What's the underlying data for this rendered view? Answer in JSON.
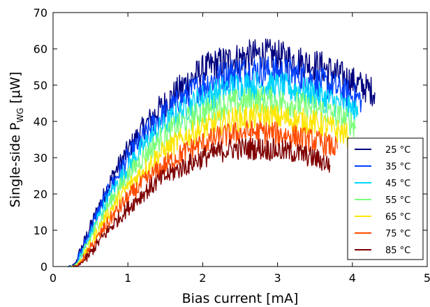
{
  "chart_data": {
    "type": "line",
    "xlabel": "Bias current [mA]",
    "ylabel": {
      "main": "Single-side P",
      "sub": "WG",
      "unit": " [μW]"
    },
    "xlim": [
      0,
      5
    ],
    "ylim": [
      0,
      70
    ],
    "xticks": [
      0,
      1,
      2,
      3,
      4,
      5
    ],
    "yticks": [
      0,
      10,
      20,
      30,
      40,
      50,
      60,
      70
    ],
    "grid": false,
    "legend_position": "lower-right",
    "noise": "curves show strong high-frequency fluctuation around the listed mean values",
    "series": [
      {
        "name": "25 °C",
        "color": "#00007f",
        "x": [
          0.2,
          0.25,
          0.3,
          0.4,
          0.6,
          0.8,
          1.0,
          1.2,
          1.4,
          1.6,
          1.8,
          2.0,
          2.2,
          2.4,
          2.6,
          2.8,
          3.0,
          3.2,
          3.4,
          3.6,
          3.8,
          4.0,
          4.2,
          4.3
        ],
        "y": [
          0,
          0,
          1,
          6,
          16,
          25,
          32,
          38,
          43,
          47,
          51,
          54,
          56,
          57,
          58,
          58.5,
          58,
          57,
          56,
          55,
          53,
          51,
          49,
          48
        ]
      },
      {
        "name": "35 °C",
        "color": "#0041ff",
        "x": [
          0.21,
          0.26,
          0.31,
          0.4,
          0.6,
          0.8,
          1.0,
          1.2,
          1.4,
          1.6,
          1.8,
          2.0,
          2.2,
          2.4,
          2.6,
          2.8,
          3.0,
          3.2,
          3.4,
          3.6,
          3.8,
          4.0,
          4.12
        ],
        "y": [
          0,
          0,
          1,
          5,
          15,
          23,
          30,
          35.5,
          40.5,
          44,
          47.5,
          50,
          52,
          53.5,
          54,
          54,
          53.5,
          53,
          52,
          50.5,
          49,
          47,
          46
        ]
      },
      {
        "name": "45 °C",
        "color": "#00d5ff",
        "x": [
          0.22,
          0.27,
          0.32,
          0.4,
          0.6,
          0.8,
          1.0,
          1.2,
          1.4,
          1.6,
          1.8,
          2.0,
          2.2,
          2.4,
          2.6,
          2.8,
          3.0,
          3.2,
          3.4,
          3.6,
          3.8,
          4.0,
          4.08
        ],
        "y": [
          0,
          0,
          1,
          4,
          13.5,
          21,
          27.5,
          33,
          37.5,
          41,
          44,
          46.5,
          48,
          49.5,
          50,
          50,
          49.5,
          49,
          48,
          46.5,
          45,
          43,
          42
        ]
      },
      {
        "name": "55 °C",
        "color": "#7dff7a",
        "x": [
          0.23,
          0.28,
          0.33,
          0.4,
          0.6,
          0.8,
          1.0,
          1.2,
          1.4,
          1.6,
          1.8,
          2.0,
          2.2,
          2.4,
          2.6,
          2.8,
          3.0,
          3.2,
          3.4,
          3.6,
          3.8,
          4.0,
          4.05
        ],
        "y": [
          0,
          0,
          1,
          3.5,
          12,
          19,
          25,
          30,
          34.5,
          38,
          40.5,
          42.5,
          44,
          45,
          45.5,
          46,
          45.5,
          45,
          44,
          43,
          41.5,
          39.5,
          38.5
        ]
      },
      {
        "name": "65 °C",
        "color": "#ffe600",
        "x": [
          0.24,
          0.29,
          0.34,
          0.42,
          0.6,
          0.8,
          1.0,
          1.2,
          1.4,
          1.6,
          1.8,
          2.0,
          2.2,
          2.4,
          2.6,
          2.8,
          3.0,
          3.2,
          3.4,
          3.6,
          3.8,
          3.95
        ],
        "y": [
          0,
          0,
          1,
          3,
          10,
          16.5,
          22,
          26.5,
          30.5,
          33.5,
          36,
          38,
          39.5,
          40.5,
          41,
          41.5,
          41,
          40.5,
          40,
          39,
          37.5,
          36
        ]
      },
      {
        "name": "75 °C",
        "color": "#ff4a00",
        "x": [
          0.26,
          0.31,
          0.36,
          0.44,
          0.6,
          0.8,
          1.0,
          1.2,
          1.4,
          1.6,
          1.8,
          2.0,
          2.2,
          2.4,
          2.6,
          2.8,
          3.0,
          3.2,
          3.4,
          3.6,
          3.8
        ],
        "y": [
          0,
          0,
          1,
          3,
          8,
          14,
          19,
          23,
          26.5,
          29.5,
          32,
          34,
          35.5,
          36.5,
          37,
          37,
          36.5,
          36,
          35,
          34,
          32.5
        ]
      },
      {
        "name": "85 °C",
        "color": "#7f0000",
        "x": [
          0.28,
          0.33,
          0.38,
          0.46,
          0.6,
          0.8,
          1.0,
          1.2,
          1.4,
          1.6,
          1.8,
          2.0,
          2.2,
          2.4,
          2.6,
          2.8,
          3.0,
          3.2,
          3.4,
          3.6,
          3.7
        ],
        "y": [
          0,
          0,
          1,
          2.5,
          6.5,
          11.5,
          16,
          20,
          23.5,
          26,
          28,
          30,
          31.5,
          32.5,
          32.5,
          32.5,
          32,
          31.5,
          30.5,
          29,
          28
        ]
      }
    ]
  }
}
